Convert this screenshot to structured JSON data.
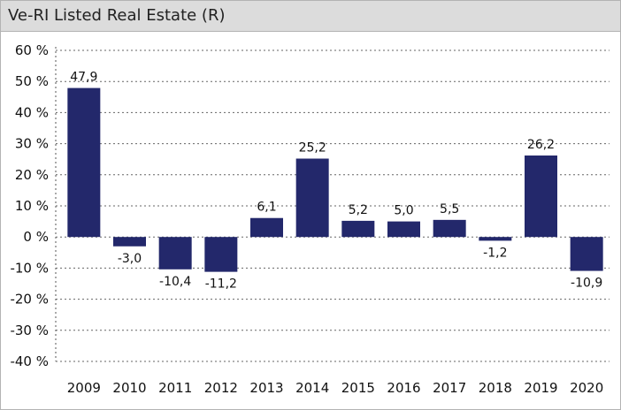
{
  "title": "Ve-RI Listed Real Estate (R)",
  "chart_data": {
    "type": "bar",
    "categories": [
      "2009",
      "2010",
      "2011",
      "2012",
      "2013",
      "2014",
      "2015",
      "2016",
      "2017",
      "2018",
      "2019",
      "2020"
    ],
    "values": [
      47.9,
      -3.0,
      -10.4,
      -11.2,
      6.1,
      25.2,
      5.2,
      5.0,
      5.5,
      -1.2,
      26.2,
      -10.9
    ],
    "data_labels": [
      "47,9",
      "-3,0",
      "-10,4",
      "-11,2",
      "6,1",
      "25,2",
      "5,2",
      "5,0",
      "5,5",
      "-1,2",
      "26,2",
      "-10,9"
    ],
    "ylim": [
      -40,
      60
    ],
    "yticks": [
      60,
      50,
      40,
      30,
      20,
      10,
      0,
      -10,
      -20,
      -30,
      -40
    ],
    "ytick_labels": [
      "60 %",
      "50 %",
      "40 %",
      "30 %",
      "20 %",
      "10 %",
      "0 %",
      "-10 %",
      "-20 %",
      "-30 %",
      "-40 %"
    ],
    "grid": "dotted horizontal",
    "bar_color": "#23286b",
    "grid_color": "#666666"
  }
}
